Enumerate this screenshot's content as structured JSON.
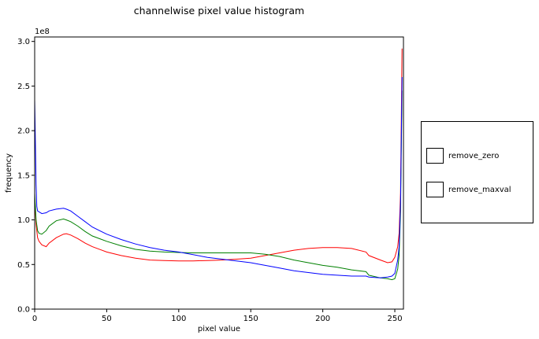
{
  "chart_data": {
    "type": "line",
    "title": "channelwise pixel value histogram",
    "xlabel": "pixel value",
    "ylabel": "frequency",
    "y_scale_label": "1e8",
    "xlim": [
      0,
      256
    ],
    "ylim": [
      0,
      3.05
    ],
    "x_ticks": [
      0,
      50,
      100,
      150,
      200,
      250
    ],
    "x_tick_labels": [
      "0",
      "50",
      "100",
      "150",
      "200",
      "250"
    ],
    "y_ticks": [
      0,
      0.5,
      1.0,
      1.5,
      2.0,
      2.5,
      3.0
    ],
    "y_tick_labels": [
      "0.0",
      "0.5",
      "1.0",
      "1.5",
      "2.0",
      "2.5",
      "3.0"
    ],
    "grid": false,
    "legend": "none",
    "series": [
      {
        "color": "#ff0000",
        "points": [
          [
            0,
            1.25
          ],
          [
            1,
            0.95
          ],
          [
            2,
            0.8
          ],
          [
            3,
            0.76
          ],
          [
            5,
            0.72
          ],
          [
            8,
            0.7
          ],
          [
            10,
            0.74
          ],
          [
            15,
            0.8
          ],
          [
            20,
            0.84
          ],
          [
            22,
            0.845
          ],
          [
            25,
            0.83
          ],
          [
            30,
            0.79
          ],
          [
            35,
            0.74
          ],
          [
            40,
            0.7
          ],
          [
            50,
            0.64
          ],
          [
            60,
            0.6
          ],
          [
            70,
            0.57
          ],
          [
            80,
            0.55
          ],
          [
            90,
            0.545
          ],
          [
            100,
            0.54
          ],
          [
            110,
            0.54
          ],
          [
            120,
            0.545
          ],
          [
            130,
            0.55
          ],
          [
            140,
            0.56
          ],
          [
            150,
            0.57
          ],
          [
            160,
            0.6
          ],
          [
            170,
            0.63
          ],
          [
            180,
            0.66
          ],
          [
            190,
            0.68
          ],
          [
            200,
            0.69
          ],
          [
            210,
            0.69
          ],
          [
            220,
            0.68
          ],
          [
            230,
            0.64
          ],
          [
            232,
            0.6
          ],
          [
            240,
            0.55
          ],
          [
            245,
            0.52
          ],
          [
            248,
            0.53
          ],
          [
            250,
            0.58
          ],
          [
            252,
            0.7
          ],
          [
            253,
            0.85
          ],
          [
            254,
            1.3
          ],
          [
            255,
            2.92
          ]
        ]
      },
      {
        "color": "#008000",
        "points": [
          [
            0,
            1.3
          ],
          [
            1,
            1.0
          ],
          [
            2,
            0.88
          ],
          [
            3,
            0.85
          ],
          [
            5,
            0.84
          ],
          [
            8,
            0.88
          ],
          [
            10,
            0.93
          ],
          [
            15,
            0.99
          ],
          [
            20,
            1.01
          ],
          [
            22,
            1.0
          ],
          [
            25,
            0.98
          ],
          [
            30,
            0.93
          ],
          [
            35,
            0.87
          ],
          [
            40,
            0.82
          ],
          [
            50,
            0.76
          ],
          [
            60,
            0.71
          ],
          [
            70,
            0.67
          ],
          [
            80,
            0.65
          ],
          [
            90,
            0.64
          ],
          [
            100,
            0.635
          ],
          [
            110,
            0.63
          ],
          [
            120,
            0.63
          ],
          [
            130,
            0.63
          ],
          [
            140,
            0.63
          ],
          [
            150,
            0.63
          ],
          [
            160,
            0.615
          ],
          [
            170,
            0.59
          ],
          [
            180,
            0.55
          ],
          [
            190,
            0.52
          ],
          [
            200,
            0.49
          ],
          [
            210,
            0.47
          ],
          [
            220,
            0.44
          ],
          [
            230,
            0.42
          ],
          [
            232,
            0.38
          ],
          [
            240,
            0.35
          ],
          [
            245,
            0.34
          ],
          [
            248,
            0.33
          ],
          [
            250,
            0.34
          ],
          [
            252,
            0.45
          ],
          [
            253,
            0.6
          ],
          [
            254,
            1.1
          ],
          [
            255,
            2.45
          ]
        ]
      },
      {
        "color": "#0000ff",
        "points": [
          [
            0,
            2.35
          ],
          [
            1,
            1.4
          ],
          [
            1.5,
            1.15
          ],
          [
            2,
            1.1
          ],
          [
            5,
            1.07
          ],
          [
            8,
            1.08
          ],
          [
            10,
            1.1
          ],
          [
            15,
            1.12
          ],
          [
            20,
            1.13
          ],
          [
            22,
            1.12
          ],
          [
            25,
            1.1
          ],
          [
            30,
            1.04
          ],
          [
            35,
            0.98
          ],
          [
            40,
            0.92
          ],
          [
            50,
            0.84
          ],
          [
            60,
            0.78
          ],
          [
            70,
            0.73
          ],
          [
            80,
            0.69
          ],
          [
            90,
            0.66
          ],
          [
            100,
            0.64
          ],
          [
            110,
            0.61
          ],
          [
            120,
            0.58
          ],
          [
            130,
            0.56
          ],
          [
            140,
            0.54
          ],
          [
            150,
            0.52
          ],
          [
            160,
            0.49
          ],
          [
            170,
            0.46
          ],
          [
            180,
            0.43
          ],
          [
            190,
            0.41
          ],
          [
            200,
            0.39
          ],
          [
            210,
            0.38
          ],
          [
            220,
            0.37
          ],
          [
            230,
            0.37
          ],
          [
            232,
            0.36
          ],
          [
            240,
            0.35
          ],
          [
            245,
            0.36
          ],
          [
            248,
            0.37
          ],
          [
            250,
            0.4
          ],
          [
            252,
            0.55
          ],
          [
            253,
            0.7
          ],
          [
            254,
            1.2
          ],
          [
            255,
            2.6
          ]
        ]
      }
    ]
  },
  "widgets": {
    "items": [
      {
        "label": "remove_zero"
      },
      {
        "label": "remove_maxval"
      }
    ]
  }
}
